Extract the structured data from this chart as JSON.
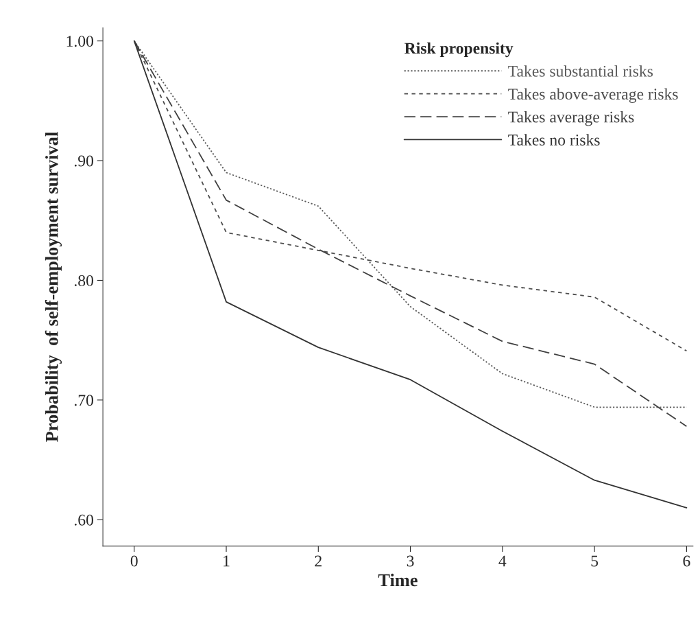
{
  "chart_data": {
    "type": "line",
    "xlabel": "Time",
    "ylabel": "Probability  of self-employment survival",
    "legend_title": "Risk propensity",
    "legend": "top right",
    "grid": false,
    "marker": "none",
    "x": [
      0,
      1,
      2,
      3,
      4,
      5,
      6
    ],
    "xlim": [
      -0.34,
      6.07
    ],
    "xticks": [
      0,
      1,
      2,
      3,
      4,
      5,
      6
    ],
    "ylim": [
      0.578,
      1.011
    ],
    "yticks": [
      {
        "value": 0.6,
        "label": ".60"
      },
      {
        "value": 0.7,
        "label": ".70"
      },
      {
        "value": 0.8,
        "label": ".80"
      },
      {
        "value": 0.9,
        "label": ".90"
      },
      {
        "value": 1.0,
        "label": "1.00"
      }
    ],
    "series": [
      {
        "name": "Takes substantial risks",
        "color": "#5a5a5a",
        "line_style": "dotted",
        "values": [
          1.0,
          0.89,
          0.862,
          0.778,
          0.722,
          0.694,
          0.694
        ]
      },
      {
        "name": "Takes above-average risks",
        "color": "#4e4e4e",
        "line_style": "dashed",
        "values": [
          1.0,
          0.84,
          0.825,
          0.81,
          0.796,
          0.786,
          0.741
        ]
      },
      {
        "name": "Takes average risks",
        "color": "#404040",
        "line_style": "dashed",
        "values": [
          1.0,
          0.867,
          0.826,
          0.787,
          0.749,
          0.73,
          0.678
        ]
      },
      {
        "name": "Takes no risks",
        "color": "#333333",
        "line_style": "solid",
        "values": [
          1.0,
          0.782,
          0.744,
          0.717,
          0.674,
          0.633,
          0.61
        ]
      }
    ]
  }
}
